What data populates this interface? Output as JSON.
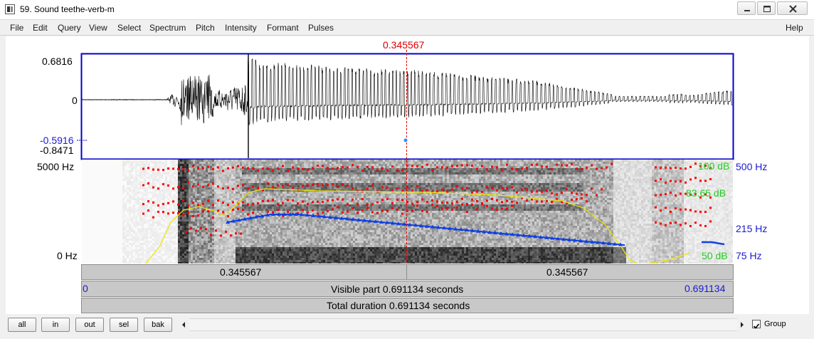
{
  "window": {
    "title": "59. Sound teethe-verb-m"
  },
  "menu": {
    "left": [
      "File",
      "Edit",
      "Query",
      "View",
      "Select",
      "Spectrum",
      "Pitch",
      "Intensity",
      "Formant",
      "Pulses"
    ],
    "help": "Help"
  },
  "cursor": {
    "time_label": "0.345567"
  },
  "waveform": {
    "ymax": "0.6816",
    "zero": "0",
    "cursor_value": "-0.5916",
    "ymin": "-0.8471"
  },
  "spectrogram": {
    "freq_top": "5000 Hz",
    "freq_bottom": "0 Hz",
    "intensity_labels": [
      "100 dB",
      "83.65 dB",
      "50 dB"
    ],
    "pitch_labels": [
      "500 Hz",
      "215 Hz",
      "75 Hz"
    ]
  },
  "bars": {
    "left_interval": "0.345567",
    "right_interval": "0.345567",
    "visible_start": "0",
    "visible_label": "Visible part 0.691134 seconds",
    "visible_end": "0.691134",
    "total_label": "Total duration 0.691134 seconds"
  },
  "bottom": {
    "buttons": [
      "all",
      "in",
      "out",
      "sel",
      "bak"
    ],
    "group_label": "Group",
    "group_checked": true
  },
  "colors": {
    "cursor": "#e00000",
    "pitch": "#1040e0",
    "formant": "#ff0000",
    "intensity": "#e8e000",
    "intensity_label": "#22cc22",
    "pitch_label": "#1a1ad0"
  }
}
